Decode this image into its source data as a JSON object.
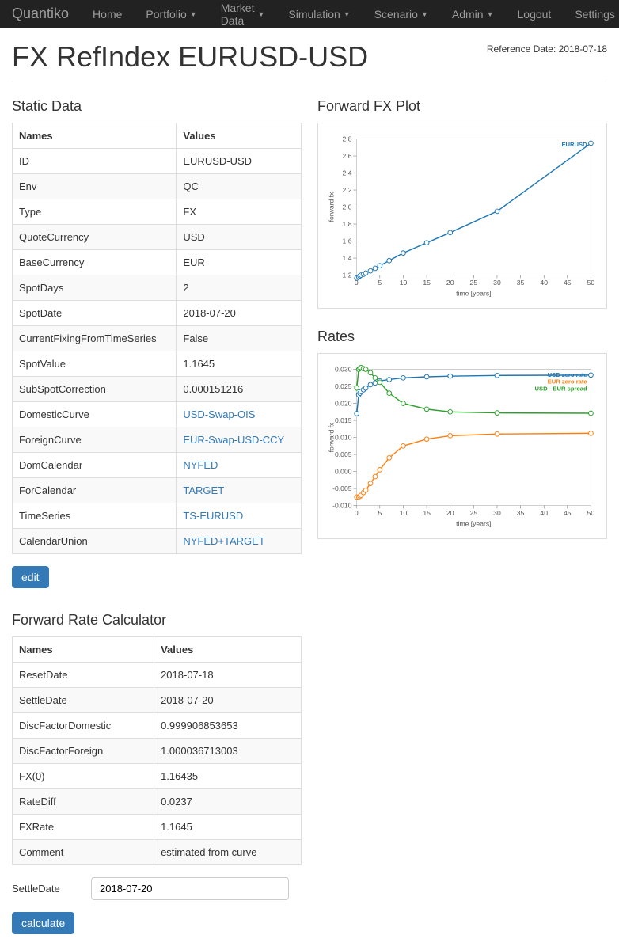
{
  "nav": {
    "brand": "Quantiko",
    "items": [
      "Home",
      "Portfolio",
      "Market Data",
      "Simulation",
      "Scenario",
      "Admin",
      "Logout"
    ],
    "dropdowns": [
      false,
      true,
      true,
      true,
      true,
      true,
      false
    ],
    "right": "Settings"
  },
  "ref_date_label": "Reference Date: 2018-07-18",
  "page_title": "FX RefIndex EURUSD-USD",
  "static_data": {
    "title": "Static Data",
    "headers": [
      "Names",
      "Values"
    ],
    "rows": [
      {
        "name": "ID",
        "value": "EURUSD-USD",
        "link": false
      },
      {
        "name": "Env",
        "value": "QC",
        "link": false
      },
      {
        "name": "Type",
        "value": "FX",
        "link": false
      },
      {
        "name": "QuoteCurrency",
        "value": "USD",
        "link": false
      },
      {
        "name": "BaseCurrency",
        "value": "EUR",
        "link": false
      },
      {
        "name": "SpotDays",
        "value": "2",
        "link": false
      },
      {
        "name": "SpotDate",
        "value": "2018-07-20",
        "link": false
      },
      {
        "name": "CurrentFixingFromTimeSeries",
        "value": "False",
        "link": false
      },
      {
        "name": "SpotValue",
        "value": "1.1645",
        "link": false
      },
      {
        "name": "SubSpotCorrection",
        "value": "0.000151216",
        "link": false
      },
      {
        "name": "DomesticCurve",
        "value": "USD-Swap-OIS",
        "link": true
      },
      {
        "name": "ForeignCurve",
        "value": "EUR-Swap-USD-CCY",
        "link": true
      },
      {
        "name": "DomCalendar",
        "value": "NYFED",
        "link": true
      },
      {
        "name": "ForCalendar",
        "value": "TARGET",
        "link": true
      },
      {
        "name": "TimeSeries",
        "value": "TS-EURUSD",
        "link": true
      },
      {
        "name": "CalendarUnion",
        "value": "NYFED+TARGET",
        "link": true
      }
    ],
    "edit_button": "edit"
  },
  "forward_calc": {
    "title": "Forward Rate Calculator",
    "headers": [
      "Names",
      "Values"
    ],
    "rows": [
      {
        "name": "ResetDate",
        "value": "2018-07-18"
      },
      {
        "name": "SettleDate",
        "value": "2018-07-20"
      },
      {
        "name": "DiscFactorDomestic",
        "value": "0.999906853653"
      },
      {
        "name": "DiscFactorForeign",
        "value": "1.000036713003"
      },
      {
        "name": "FX(0)",
        "value": "1.16435"
      },
      {
        "name": "RateDiff",
        "value": "0.0237"
      },
      {
        "name": "FXRate",
        "value": "1.1645"
      },
      {
        "name": "Comment",
        "value": "estimated from curve"
      }
    ],
    "settle_label": "SettleDate",
    "settle_value": "2018-07-20",
    "calc_button": "calculate"
  },
  "chart1": {
    "title": "Forward FX Plot",
    "type": "line",
    "xlabel": "time [years]",
    "ylabel": "forward fx",
    "xlim": [
      0,
      50
    ],
    "xtick_step": 5,
    "ylim": [
      1.2,
      2.8
    ],
    "ytick_step": 0.2,
    "series": [
      {
        "name": "EURUSD",
        "color": "#1f77b4",
        "x": [
          0.08,
          0.5,
          0.75,
          1,
          1.5,
          2,
          3,
          4,
          5,
          7,
          10,
          15,
          20,
          30,
          50
        ],
        "y": [
          1.165,
          1.18,
          1.19,
          1.2,
          1.21,
          1.225,
          1.25,
          1.28,
          1.31,
          1.37,
          1.46,
          1.58,
          1.7,
          1.95,
          2.75
        ]
      }
    ],
    "background_color": "#ffffff",
    "grid_color": "none",
    "marker": "circle",
    "marker_size": 3,
    "line_width": 1.5
  },
  "chart2": {
    "title": "Rates",
    "type": "line",
    "xlabel": "time [years]",
    "ylabel": "forward fx",
    "xlim": [
      0,
      50
    ],
    "xtick_step": 5,
    "ylim": [
      -0.01,
      0.03
    ],
    "ytick_step": 0.005,
    "series": [
      {
        "name": "USD zero rate",
        "color": "#1f77b4",
        "x": [
          0.08,
          0.5,
          0.75,
          1,
          1.5,
          2,
          3,
          4,
          5,
          7,
          10,
          15,
          20,
          30,
          50
        ],
        "y": [
          0.017,
          0.0225,
          0.023,
          0.0235,
          0.024,
          0.0245,
          0.0255,
          0.026,
          0.0266,
          0.027,
          0.0275,
          0.0278,
          0.028,
          0.0282,
          0.0283
        ]
      },
      {
        "name": "EUR zero rate",
        "color": "#ff7f0e",
        "x": [
          0.08,
          0.5,
          0.75,
          1,
          1.5,
          2,
          3,
          4,
          5,
          7,
          10,
          15,
          20,
          30,
          50
        ],
        "y": [
          -0.0075,
          -0.0075,
          -0.0073,
          -0.007,
          -0.0062,
          -0.0055,
          -0.0035,
          -0.0015,
          0.0005,
          0.004,
          0.0075,
          0.0095,
          0.0105,
          0.011,
          0.0112
        ]
      },
      {
        "name": "USD - EUR spread",
        "color": "#2ca02c",
        "x": [
          0.08,
          0.5,
          0.75,
          1,
          1.5,
          2,
          3,
          4,
          5,
          7,
          10,
          15,
          20,
          30,
          50
        ],
        "y": [
          0.0245,
          0.03,
          0.0303,
          0.0305,
          0.0302,
          0.03,
          0.029,
          0.0275,
          0.0262,
          0.023,
          0.02,
          0.0183,
          0.0175,
          0.0172,
          0.0171
        ]
      }
    ],
    "background_color": "#ffffff",
    "grid_color": "none",
    "marker": "circle",
    "marker_size": 3,
    "line_width": 1.5
  }
}
